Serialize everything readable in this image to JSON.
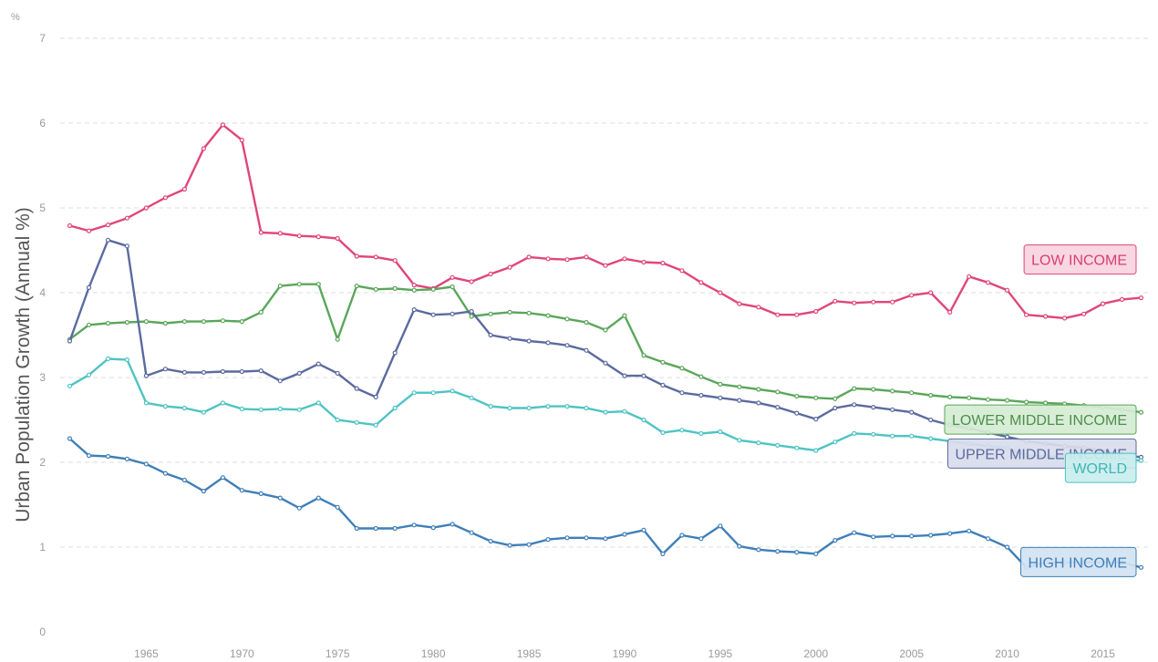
{
  "chart_data": {
    "type": "line",
    "unit": "%",
    "ylabel": "Urban Population Growth (Annual %)",
    "xlabel": "",
    "ylim": [
      0,
      7
    ],
    "xlim": [
      1960.5,
      2017.5
    ],
    "y_ticks": [
      0,
      1,
      2,
      3,
      4,
      5,
      6,
      7
    ],
    "x_ticks": [
      1965,
      1970,
      1975,
      1980,
      1985,
      1990,
      1995,
      2000,
      2005,
      2010,
      2015
    ],
    "grid": true,
    "x": [
      1961,
      1962,
      1963,
      1964,
      1965,
      1966,
      1967,
      1968,
      1969,
      1970,
      1971,
      1972,
      1973,
      1974,
      1975,
      1976,
      1977,
      1978,
      1979,
      1980,
      1981,
      1982,
      1983,
      1984,
      1985,
      1986,
      1987,
      1988,
      1989,
      1990,
      1991,
      1992,
      1993,
      1994,
      1995,
      1996,
      1997,
      1998,
      1999,
      2000,
      2001,
      2002,
      2003,
      2004,
      2005,
      2006,
      2007,
      2008,
      2009,
      2010,
      2011,
      2012,
      2013,
      2014,
      2015,
      2016,
      2017
    ],
    "series": [
      {
        "name": "LOW INCOME",
        "color": "#e0457b",
        "values": [
          4.79,
          4.73,
          4.8,
          4.88,
          5.0,
          5.12,
          5.22,
          5.7,
          5.98,
          5.8,
          4.71,
          4.7,
          4.67,
          4.66,
          4.64,
          4.43,
          4.42,
          4.38,
          4.09,
          4.05,
          4.18,
          4.13,
          4.22,
          4.3,
          4.42,
          4.4,
          4.39,
          4.42,
          4.32,
          4.4,
          4.36,
          4.35,
          4.26,
          4.12,
          4.0,
          3.87,
          3.83,
          3.74,
          3.74,
          3.78,
          3.9,
          3.88,
          3.89,
          3.89,
          3.97,
          4.0,
          3.77,
          4.19,
          4.12,
          4.03,
          3.74,
          3.72,
          3.7,
          3.75,
          3.87,
          3.92,
          3.94
        ]
      },
      {
        "name": "LOWER MIDDLE INCOME",
        "color": "#5aa65a",
        "values": [
          3.45,
          3.62,
          3.64,
          3.65,
          3.66,
          3.64,
          3.66,
          3.66,
          3.67,
          3.66,
          3.77,
          4.08,
          4.1,
          4.1,
          3.45,
          4.08,
          4.04,
          4.05,
          4.03,
          4.04,
          4.07,
          3.72,
          3.75,
          3.77,
          3.76,
          3.73,
          3.69,
          3.65,
          3.56,
          3.73,
          3.26,
          3.18,
          3.11,
          3.01,
          2.92,
          2.89,
          2.86,
          2.83,
          2.78,
          2.76,
          2.75,
          2.87,
          2.86,
          2.84,
          2.82,
          2.79,
          2.77,
          2.76,
          2.74,
          2.73,
          2.71,
          2.7,
          2.69,
          2.67,
          2.65,
          2.62,
          2.59
        ]
      },
      {
        "name": "UPPER MIDDLE INCOME",
        "color": "#5b6a9e",
        "values": [
          3.43,
          4.06,
          4.62,
          4.55,
          3.02,
          3.1,
          3.06,
          3.06,
          3.07,
          3.07,
          3.08,
          2.96,
          3.05,
          3.16,
          3.05,
          2.87,
          2.77,
          3.29,
          3.8,
          3.74,
          3.75,
          3.78,
          3.5,
          3.46,
          3.43,
          3.41,
          3.38,
          3.32,
          3.17,
          3.02,
          3.02,
          2.91,
          2.82,
          2.79,
          2.76,
          2.73,
          2.7,
          2.65,
          2.58,
          2.51,
          2.64,
          2.68,
          2.65,
          2.62,
          2.59,
          2.5,
          2.44,
          2.4,
          2.35,
          2.3,
          2.25,
          2.22,
          2.19,
          2.17,
          2.13,
          2.09,
          2.06
        ]
      },
      {
        "name": "WORLD",
        "color": "#4fc3c3",
        "values": [
          2.9,
          3.03,
          3.22,
          3.21,
          2.7,
          2.66,
          2.64,
          2.59,
          2.7,
          2.63,
          2.62,
          2.63,
          2.62,
          2.7,
          2.5,
          2.47,
          2.44,
          2.64,
          2.82,
          2.82,
          2.84,
          2.76,
          2.66,
          2.64,
          2.64,
          2.66,
          2.66,
          2.64,
          2.59,
          2.6,
          2.5,
          2.35,
          2.38,
          2.34,
          2.36,
          2.26,
          2.23,
          2.2,
          2.17,
          2.14,
          2.24,
          2.34,
          2.33,
          2.31,
          2.31,
          2.28,
          2.25,
          2.22,
          2.19,
          2.17,
          2.08,
          2.07,
          2.07,
          2.06,
          2.05,
          2.04,
          2.02
        ]
      },
      {
        "name": "HIGH INCOME",
        "color": "#3f7fb8",
        "values": [
          2.28,
          2.08,
          2.07,
          2.04,
          1.98,
          1.87,
          1.79,
          1.66,
          1.82,
          1.67,
          1.63,
          1.58,
          1.46,
          1.58,
          1.47,
          1.22,
          1.22,
          1.22,
          1.26,
          1.23,
          1.27,
          1.17,
          1.07,
          1.02,
          1.03,
          1.09,
          1.11,
          1.11,
          1.1,
          1.15,
          1.2,
          0.92,
          1.14,
          1.1,
          1.25,
          1.01,
          0.97,
          0.95,
          0.94,
          0.92,
          1.08,
          1.17,
          1.12,
          1.13,
          1.13,
          1.14,
          1.16,
          1.19,
          1.1,
          1.0,
          0.76,
          0.82,
          0.82,
          0.82,
          0.82,
          0.82,
          0.76
        ]
      }
    ],
    "labels": [
      {
        "series": 0,
        "text": "LOW INCOME",
        "fill": "#f7d2df",
        "border": "#e0457b",
        "text_color": "#d63f73",
        "placement": "right-end"
      },
      {
        "series": 1,
        "text": "LOWER MIDDLE INCOME",
        "fill": "#d5ebd3",
        "border": "#5aa65a",
        "text_color": "#4e8f4e",
        "placement": "right-end"
      },
      {
        "series": 2,
        "text": "UPPER MIDDLE INCOME",
        "fill": "#d9dcec",
        "border": "#5b6a9e",
        "text_color": "#5b6a9e",
        "placement": "right-end"
      },
      {
        "series": 3,
        "text": "WORLD",
        "fill": "#c9eeee",
        "border": "#4fc3c3",
        "text_color": "#3fb5b5",
        "placement": "right-end"
      },
      {
        "series": 4,
        "text": "HIGH INCOME",
        "fill": "#d3e3f2",
        "border": "#3f7fb8",
        "text_color": "#3f7fb8",
        "placement": "right-end"
      }
    ]
  }
}
